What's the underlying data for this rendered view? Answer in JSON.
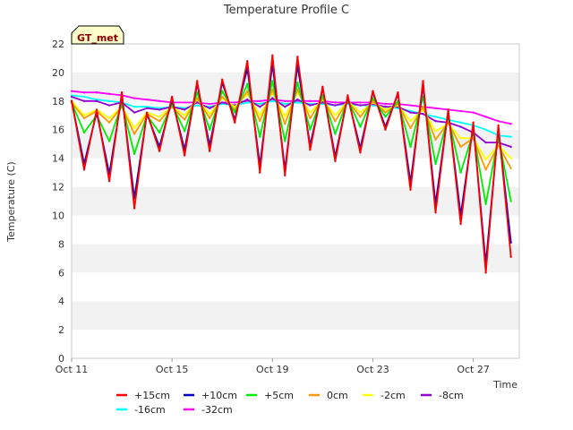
{
  "chart_data": {
    "type": "line",
    "title": "Temperature Profile C",
    "xlabel": "Time",
    "ylabel": "Temperature (C)",
    "badge": "GT_met",
    "xlim": [
      "2023-10-11",
      "2023-10-28 20:00"
    ],
    "ylim": [
      0,
      22
    ],
    "x_ticks": [
      "Oct 11",
      "Oct 15",
      "Oct 19",
      "Oct 23",
      "Oct 27"
    ],
    "x_tick_dates": [
      "2023-10-11",
      "2023-10-15",
      "2023-10-19",
      "2023-10-23",
      "2023-10-27"
    ],
    "y_ticks": [
      0,
      2,
      4,
      6,
      8,
      10,
      12,
      14,
      16,
      18,
      20,
      22
    ],
    "grid": "alternating horizontal bands",
    "legend_position": "bottom-center",
    "series": [
      {
        "name": "+15cm",
        "color": "#ff0000",
        "x": [
          "2023-10-11",
          "2023-10-11 12:00",
          "2023-10-12",
          "2023-10-12 12:00",
          "2023-10-13",
          "2023-10-13 12:00",
          "2023-10-14",
          "2023-10-14 12:00",
          "2023-10-15",
          "2023-10-15 12:00",
          "2023-10-16",
          "2023-10-16 12:00",
          "2023-10-17",
          "2023-10-17 12:00",
          "2023-10-18",
          "2023-10-18 12:00",
          "2023-10-19",
          "2023-10-19 12:00",
          "2023-10-20",
          "2023-10-20 12:00",
          "2023-10-21",
          "2023-10-21 12:00",
          "2023-10-22",
          "2023-10-22 12:00",
          "2023-10-23",
          "2023-10-23 12:00",
          "2023-10-24",
          "2023-10-24 12:00",
          "2023-10-25",
          "2023-10-25 12:00",
          "2023-10-26",
          "2023-10-26 12:00",
          "2023-10-27",
          "2023-10-27 12:00",
          "2023-10-28",
          "2023-10-28 12:00"
        ],
        "y": [
          18.0,
          13.2,
          17.4,
          12.4,
          18.6,
          10.5,
          17.2,
          14.5,
          18.3,
          14.2,
          19.4,
          14.5,
          19.5,
          16.5,
          20.8,
          13.0,
          21.2,
          12.8,
          21.1,
          14.6,
          19.0,
          13.8,
          18.4,
          14.4,
          18.7,
          16.0,
          18.6,
          11.8,
          19.4,
          10.2,
          17.4,
          9.4,
          16.5,
          6.0,
          16.3,
          7.1
        ]
      },
      {
        "name": "+10cm",
        "color": "#0000cd",
        "x": [
          "2023-10-11",
          "2023-10-11 12:00",
          "2023-10-12",
          "2023-10-12 12:00",
          "2023-10-13",
          "2023-10-13 12:00",
          "2023-10-14",
          "2023-10-14 12:00",
          "2023-10-15",
          "2023-10-15 12:00",
          "2023-10-16",
          "2023-10-16 12:00",
          "2023-10-17",
          "2023-10-17 12:00",
          "2023-10-18",
          "2023-10-18 12:00",
          "2023-10-19",
          "2023-10-19 12:00",
          "2023-10-20",
          "2023-10-20 12:00",
          "2023-10-21",
          "2023-10-21 12:00",
          "2023-10-22",
          "2023-10-22 12:00",
          "2023-10-23",
          "2023-10-23 12:00",
          "2023-10-24",
          "2023-10-24 12:00",
          "2023-10-25",
          "2023-10-25 12:00",
          "2023-10-26",
          "2023-10-26 12:00",
          "2023-10-27",
          "2023-10-27 12:00",
          "2023-10-28",
          "2023-10-28 12:00"
        ],
        "y": [
          18.0,
          13.6,
          17.2,
          12.9,
          18.4,
          11.2,
          17.1,
          14.8,
          18.1,
          14.6,
          19.2,
          14.9,
          19.3,
          16.7,
          20.3,
          13.5,
          20.6,
          13.2,
          20.5,
          14.9,
          18.9,
          14.1,
          18.3,
          14.7,
          18.6,
          16.2,
          18.5,
          12.3,
          19.1,
          10.8,
          17.3,
          10.0,
          16.3,
          6.6,
          16.1,
          8.1
        ]
      },
      {
        "name": "+5cm",
        "color": "#00ee00",
        "x": [
          "2023-10-11",
          "2023-10-11 12:00",
          "2023-10-12",
          "2023-10-12 12:00",
          "2023-10-13",
          "2023-10-13 12:00",
          "2023-10-14",
          "2023-10-14 12:00",
          "2023-10-15",
          "2023-10-15 12:00",
          "2023-10-16",
          "2023-10-16 12:00",
          "2023-10-17",
          "2023-10-17 12:00",
          "2023-10-18",
          "2023-10-18 12:00",
          "2023-10-19",
          "2023-10-19 12:00",
          "2023-10-20",
          "2023-10-20 12:00",
          "2023-10-21",
          "2023-10-21 12:00",
          "2023-10-22",
          "2023-10-22 12:00",
          "2023-10-23",
          "2023-10-23 12:00",
          "2023-10-24",
          "2023-10-24 12:00",
          "2023-10-25",
          "2023-10-25 12:00",
          "2023-10-26",
          "2023-10-26 12:00",
          "2023-10-27",
          "2023-10-27 12:00",
          "2023-10-28",
          "2023-10-28 12:00"
        ],
        "y": [
          17.9,
          15.8,
          17.0,
          15.2,
          17.8,
          14.3,
          17.0,
          15.8,
          17.8,
          15.9,
          18.6,
          16.0,
          18.7,
          17.2,
          19.2,
          15.5,
          19.4,
          15.2,
          19.3,
          16.0,
          18.4,
          15.7,
          18.1,
          16.2,
          18.2,
          16.9,
          18.0,
          14.8,
          18.3,
          13.6,
          16.9,
          13.0,
          15.8,
          10.8,
          15.5,
          11.0
        ]
      },
      {
        "name": "0cm",
        "color": "#ff9900",
        "x": [
          "2023-10-11",
          "2023-10-11 12:00",
          "2023-10-12",
          "2023-10-12 12:00",
          "2023-10-13",
          "2023-10-13 12:00",
          "2023-10-14",
          "2023-10-14 12:00",
          "2023-10-15",
          "2023-10-15 12:00",
          "2023-10-16",
          "2023-10-16 12:00",
          "2023-10-17",
          "2023-10-17 12:00",
          "2023-10-18",
          "2023-10-18 12:00",
          "2023-10-19",
          "2023-10-19 12:00",
          "2023-10-20",
          "2023-10-20 12:00",
          "2023-10-21",
          "2023-10-21 12:00",
          "2023-10-22",
          "2023-10-22 12:00",
          "2023-10-23",
          "2023-10-23 12:00",
          "2023-10-24",
          "2023-10-24 12:00",
          "2023-10-25",
          "2023-10-25 12:00",
          "2023-10-26",
          "2023-10-26 12:00",
          "2023-10-27",
          "2023-10-27 12:00",
          "2023-10-28",
          "2023-10-28 12:00"
        ],
        "y": [
          17.9,
          16.8,
          17.3,
          16.5,
          17.6,
          15.7,
          17.1,
          16.6,
          17.6,
          16.7,
          18.2,
          16.8,
          18.3,
          17.4,
          18.7,
          16.6,
          18.8,
          16.4,
          18.8,
          16.8,
          18.2,
          16.6,
          18.0,
          16.9,
          18.0,
          17.2,
          17.8,
          16.1,
          17.6,
          15.3,
          16.5,
          14.8,
          15.4,
          13.2,
          14.9,
          13.3
        ]
      },
      {
        "name": "-2cm",
        "color": "#ffff00",
        "x": [
          "2023-10-11",
          "2023-10-11 12:00",
          "2023-10-12",
          "2023-10-12 12:00",
          "2023-10-13",
          "2023-10-13 12:00",
          "2023-10-14",
          "2023-10-14 12:00",
          "2023-10-15",
          "2023-10-15 12:00",
          "2023-10-16",
          "2023-10-16 12:00",
          "2023-10-17",
          "2023-10-17 12:00",
          "2023-10-18",
          "2023-10-18 12:00",
          "2023-10-19",
          "2023-10-19 12:00",
          "2023-10-20",
          "2023-10-20 12:00",
          "2023-10-21",
          "2023-10-21 12:00",
          "2023-10-22",
          "2023-10-22 12:00",
          "2023-10-23",
          "2023-10-23 12:00",
          "2023-10-24",
          "2023-10-24 12:00",
          "2023-10-25",
          "2023-10-25 12:00",
          "2023-10-26",
          "2023-10-26 12:00",
          "2023-10-27",
          "2023-10-27 12:00",
          "2023-10-28",
          "2023-10-28 12:00"
        ],
        "y": [
          18.0,
          17.0,
          17.4,
          16.8,
          17.6,
          16.1,
          17.2,
          16.9,
          17.6,
          17.0,
          18.1,
          17.1,
          18.2,
          17.6,
          18.5,
          17.0,
          18.6,
          16.9,
          18.6,
          17.2,
          18.1,
          17.0,
          18.0,
          17.2,
          17.9,
          17.4,
          17.7,
          16.6,
          17.4,
          15.9,
          16.4,
          15.4,
          15.4,
          13.9,
          14.9,
          14.0
        ]
      },
      {
        "name": "-8cm",
        "color": "#9400d3",
        "x": [
          "2023-10-11",
          "2023-10-11 12:00",
          "2023-10-12",
          "2023-10-12 12:00",
          "2023-10-13",
          "2023-10-13 12:00",
          "2023-10-14",
          "2023-10-14 12:00",
          "2023-10-15",
          "2023-10-15 12:00",
          "2023-10-16",
          "2023-10-16 12:00",
          "2023-10-17",
          "2023-10-17 12:00",
          "2023-10-18",
          "2023-10-18 12:00",
          "2023-10-19",
          "2023-10-19 12:00",
          "2023-10-20",
          "2023-10-20 12:00",
          "2023-10-21",
          "2023-10-21 12:00",
          "2023-10-22",
          "2023-10-22 12:00",
          "2023-10-23",
          "2023-10-23 12:00",
          "2023-10-24",
          "2023-10-24 12:00",
          "2023-10-25",
          "2023-10-25 12:00",
          "2023-10-26",
          "2023-10-26 12:00",
          "2023-10-27",
          "2023-10-27 12:00",
          "2023-10-28",
          "2023-10-28 12:00"
        ],
        "y": [
          18.3,
          18.0,
          18.0,
          17.7,
          17.9,
          17.2,
          17.5,
          17.4,
          17.6,
          17.4,
          17.9,
          17.5,
          17.9,
          17.7,
          18.1,
          17.6,
          18.2,
          17.6,
          18.1,
          17.7,
          17.9,
          17.7,
          17.9,
          17.7,
          17.8,
          17.6,
          17.6,
          17.2,
          17.1,
          16.6,
          16.5,
          16.2,
          15.8,
          15.1,
          15.1,
          14.8
        ]
      },
      {
        "name": "-16cm",
        "color": "#00ffff",
        "x": [
          "2023-10-11",
          "2023-10-11 12:00",
          "2023-10-12",
          "2023-10-12 12:00",
          "2023-10-13",
          "2023-10-13 12:00",
          "2023-10-14",
          "2023-10-14 12:00",
          "2023-10-15",
          "2023-10-15 12:00",
          "2023-10-16",
          "2023-10-16 12:00",
          "2023-10-17",
          "2023-10-17 12:00",
          "2023-10-18",
          "2023-10-18 12:00",
          "2023-10-19",
          "2023-10-19 12:00",
          "2023-10-20",
          "2023-10-20 12:00",
          "2023-10-21",
          "2023-10-21 12:00",
          "2023-10-22",
          "2023-10-22 12:00",
          "2023-10-23",
          "2023-10-23 12:00",
          "2023-10-24",
          "2023-10-24 12:00",
          "2023-10-25",
          "2023-10-25 12:00",
          "2023-10-26",
          "2023-10-26 12:00",
          "2023-10-27",
          "2023-10-27 12:00",
          "2023-10-28",
          "2023-10-28 12:00"
        ],
        "y": [
          18.4,
          18.3,
          18.1,
          18.0,
          17.9,
          17.6,
          17.6,
          17.5,
          17.6,
          17.5,
          17.7,
          17.6,
          17.8,
          17.7,
          17.9,
          17.8,
          18.0,
          17.8,
          17.9,
          17.8,
          17.8,
          17.7,
          17.8,
          17.7,
          17.7,
          17.6,
          17.5,
          17.3,
          17.1,
          16.9,
          16.7,
          16.5,
          16.3,
          16.0,
          15.6,
          15.5
        ]
      },
      {
        "name": "-32cm",
        "color": "#ff00ff",
        "x": [
          "2023-10-11",
          "2023-10-11 12:00",
          "2023-10-12",
          "2023-10-12 12:00",
          "2023-10-13",
          "2023-10-13 12:00",
          "2023-10-14",
          "2023-10-14 12:00",
          "2023-10-15",
          "2023-10-15 12:00",
          "2023-10-16",
          "2023-10-16 12:00",
          "2023-10-17",
          "2023-10-17 12:00",
          "2023-10-18",
          "2023-10-18 12:00",
          "2023-10-19",
          "2023-10-19 12:00",
          "2023-10-20",
          "2023-10-20 12:00",
          "2023-10-21",
          "2023-10-21 12:00",
          "2023-10-22",
          "2023-10-22 12:00",
          "2023-10-23",
          "2023-10-23 12:00",
          "2023-10-24",
          "2023-10-24 12:00",
          "2023-10-25",
          "2023-10-25 12:00",
          "2023-10-26",
          "2023-10-26 12:00",
          "2023-10-27",
          "2023-10-27 12:00",
          "2023-10-28",
          "2023-10-28 12:00"
        ],
        "y": [
          18.7,
          18.6,
          18.6,
          18.5,
          18.4,
          18.2,
          18.1,
          18.0,
          17.9,
          17.9,
          17.9,
          17.8,
          17.9,
          17.9,
          18.0,
          18.0,
          18.1,
          18.0,
          18.0,
          18.0,
          18.0,
          17.9,
          17.9,
          17.9,
          17.9,
          17.8,
          17.8,
          17.7,
          17.6,
          17.5,
          17.4,
          17.3,
          17.2,
          16.9,
          16.6,
          16.4
        ]
      }
    ]
  }
}
